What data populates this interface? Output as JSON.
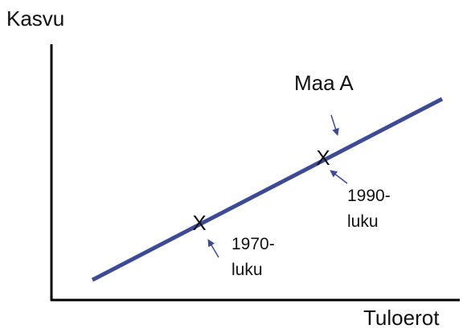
{
  "axes": {
    "y_label": "Kasvu",
    "x_label": "Tuloerot"
  },
  "line": {
    "label": "Maa A"
  },
  "points": [
    {
      "marker": "X",
      "label_lines": [
        "1970-",
        "luku"
      ]
    },
    {
      "marker": "X",
      "label_lines": [
        "1990-",
        "luku"
      ]
    }
  ]
}
